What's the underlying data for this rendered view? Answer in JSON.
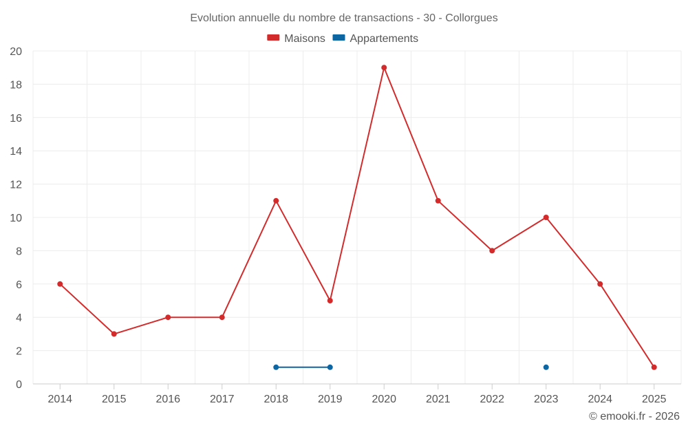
{
  "title": "Evolution annuelle du nombre de transactions - 30 - Collorgues",
  "credit": "© emooki.fr - 2026",
  "chart_data": {
    "type": "line",
    "title": "Evolution annuelle du nombre de transactions - 30 - Collorgues",
    "xlabel": "",
    "ylabel": "",
    "categories": [
      "2014",
      "2015",
      "2016",
      "2017",
      "2018",
      "2019",
      "2020",
      "2021",
      "2022",
      "2023",
      "2024",
      "2025"
    ],
    "ylim": [
      0,
      20
    ],
    "yticks": [
      0,
      2,
      4,
      6,
      8,
      10,
      12,
      14,
      16,
      18,
      20
    ],
    "grid": true,
    "legend_position": "top-center",
    "series": [
      {
        "name": "Maisons",
        "color": "#d32b2b",
        "values": [
          6,
          3,
          4,
          4,
          11,
          5,
          19,
          11,
          8,
          10,
          6,
          1
        ]
      },
      {
        "name": "Appartements",
        "color": "#0d66a2",
        "values": [
          null,
          null,
          null,
          null,
          1,
          1,
          null,
          null,
          null,
          1,
          null,
          null
        ]
      }
    ]
  }
}
